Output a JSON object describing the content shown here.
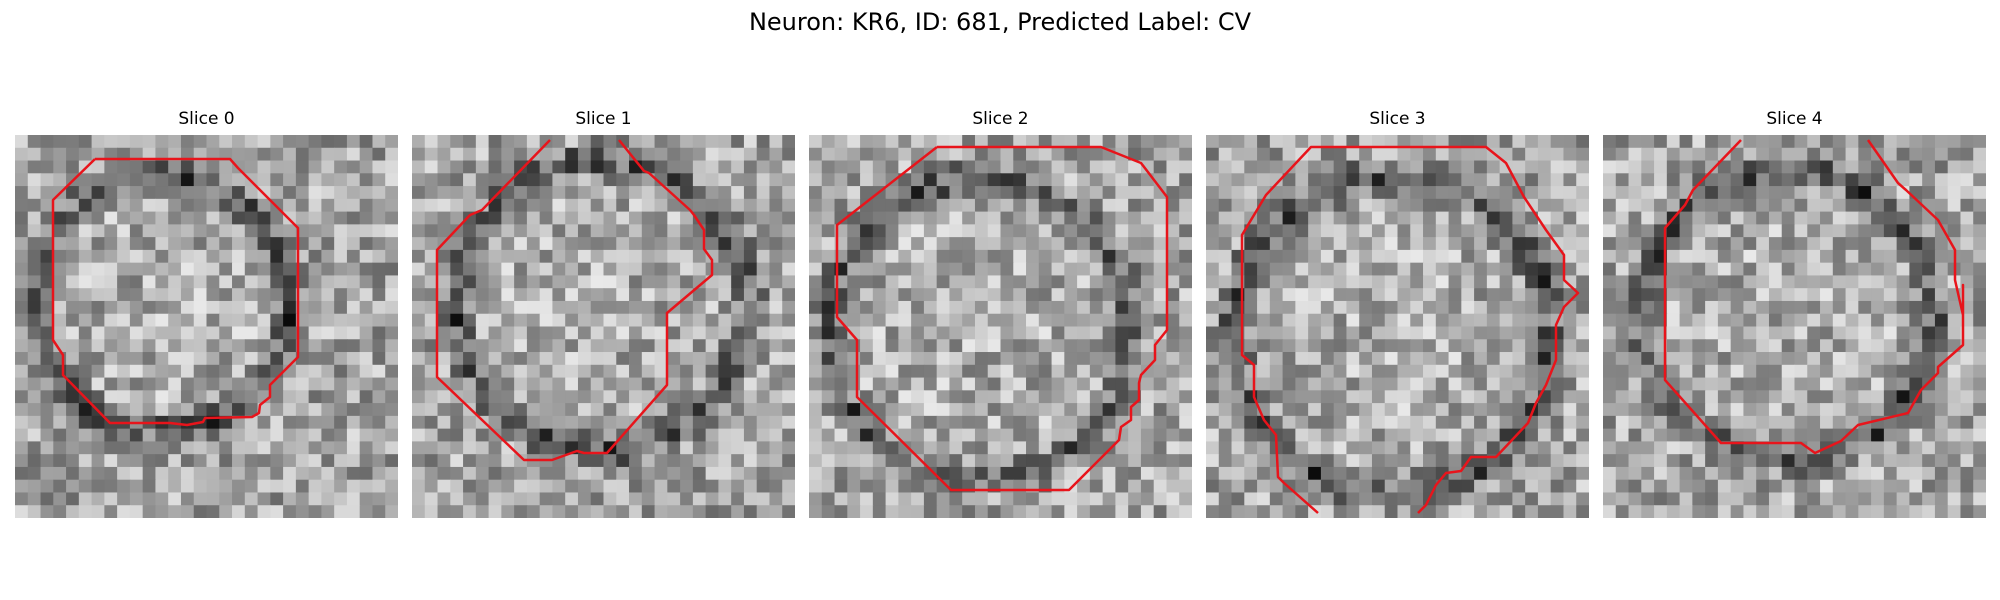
{
  "figure": {
    "title": "Neuron: KR6, ID: 681, Predicted Label: CV"
  },
  "colors": {
    "contour": "#e8141b",
    "background": "#ffffff"
  },
  "panels": [
    {
      "title": "Slice 0"
    },
    {
      "title": "Slice 1"
    },
    {
      "title": "Slice 2"
    },
    {
      "title": "Slice 3"
    },
    {
      "title": "Slice 4"
    }
  ]
}
